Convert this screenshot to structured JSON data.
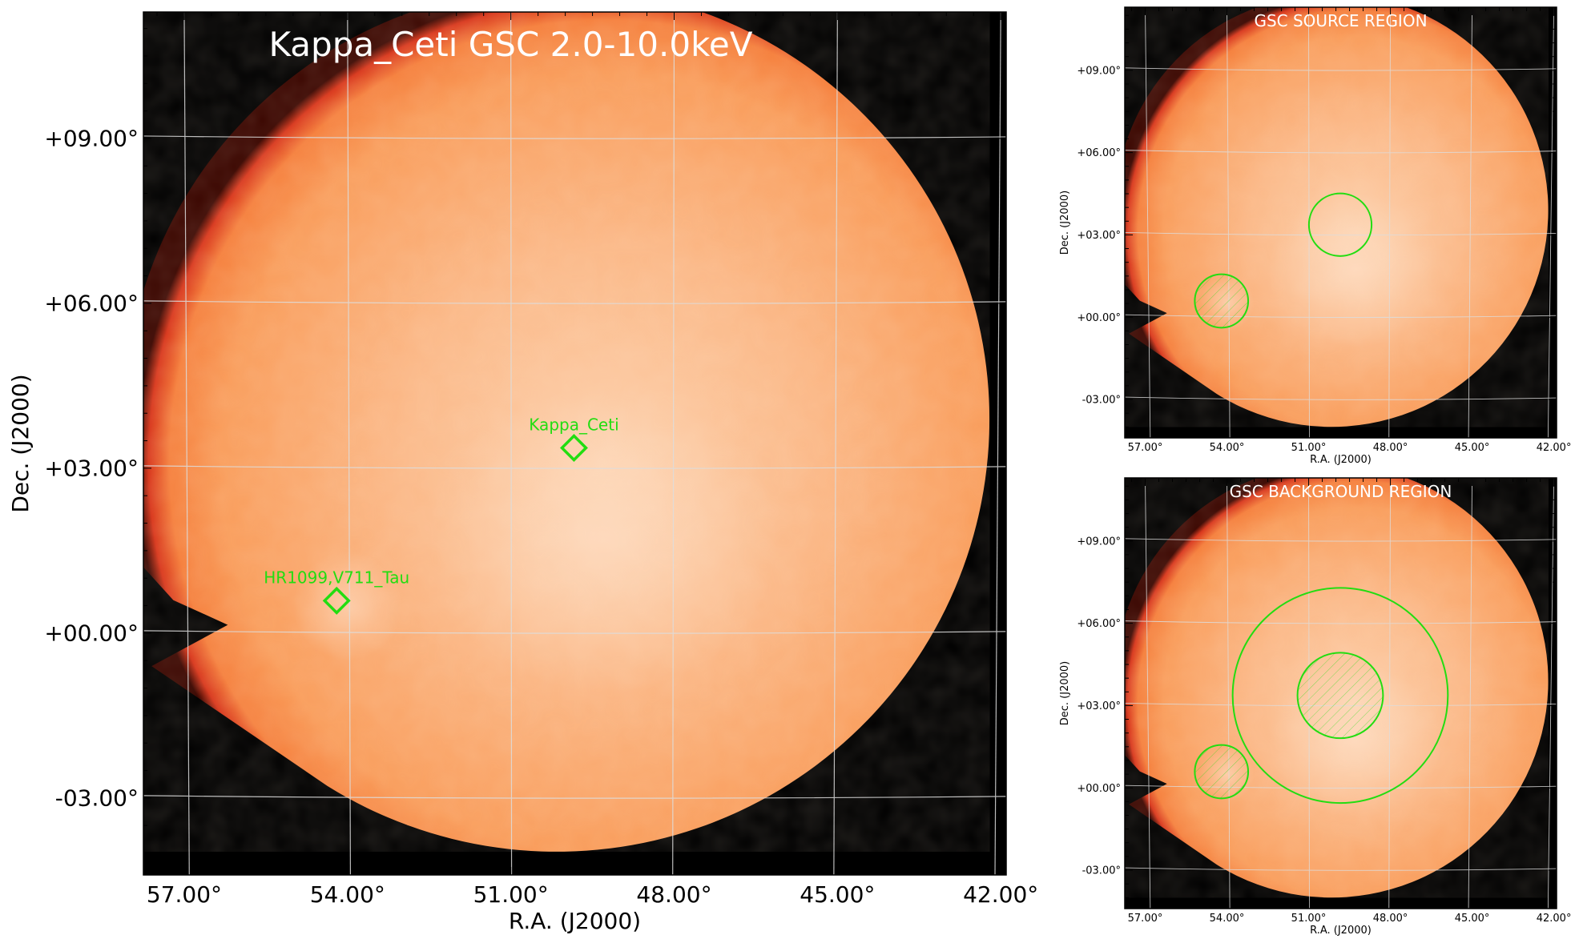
{
  "colors": {
    "background_sky": "#000000",
    "image_core": "#fcc59a",
    "image_mid": "#f99a52",
    "image_edge": "#e0301a",
    "region": "#22dd11",
    "grid": "#dddddd"
  },
  "chart_data": [
    {
      "type": "heatmap",
      "title": "Kappa_Ceti GSC 2.0-10.0keV",
      "xlabel": "R.A. (J2000)",
      "ylabel": "Dec. (J2000)",
      "xlim": [
        57.75,
        41.9
      ],
      "ylim": [
        -4.4,
        11.3
      ],
      "x_ticks": [
        57.0,
        54.0,
        51.0,
        48.0,
        45.0,
        42.0
      ],
      "x_tick_labels": [
        "57.00°",
        "54.00°",
        "51.00°",
        "48.00°",
        "45.00°",
        "42.00°"
      ],
      "y_ticks": [
        9.0,
        6.0,
        3.0,
        0.0,
        -3.0
      ],
      "y_tick_labels": [
        "+09.00°",
        "+06.00°",
        "+03.00°",
        "+00.00°",
        "-03.00°"
      ],
      "grid": true,
      "sources": [
        {
          "name": "Kappa_Ceti",
          "ra": 49.84,
          "dec": 3.37,
          "marker": "diamond"
        },
        {
          "name": "HR1099,V711_Tau",
          "ra": 54.2,
          "dec": 0.59,
          "marker": "diamond"
        }
      ]
    },
    {
      "type": "heatmap",
      "title": "GSC SOURCE REGION",
      "xlabel": "R.A. (J2000)",
      "ylabel": "Dec. (J2000)",
      "xlim": [
        57.75,
        41.9
      ],
      "ylim": [
        -4.4,
        11.3
      ],
      "x_ticks": [
        57.0,
        54.0,
        51.0,
        48.0,
        45.0,
        42.0
      ],
      "x_tick_labels": [
        "57.00°",
        "54.00°",
        "51.00°",
        "48.00°",
        "45.00°",
        "42.00°"
      ],
      "y_ticks": [
        9.0,
        6.0,
        3.0,
        0.0,
        -3.0
      ],
      "y_tick_labels": [
        "+09.00°",
        "+06.00°",
        "+03.00°",
        "+00.00°",
        "-03.00°"
      ],
      "grid": true,
      "regions": [
        {
          "kind": "circle",
          "ra": 49.84,
          "dec": 3.37,
          "radius_deg": 1.15,
          "hatched": false
        },
        {
          "kind": "circle",
          "ra": 54.2,
          "dec": 0.59,
          "radius_deg": 0.98,
          "hatched": true
        }
      ]
    },
    {
      "type": "heatmap",
      "title": "GSC BACKGROUND REGION",
      "xlabel": "R.A. (J2000)",
      "ylabel": "Dec. (J2000)",
      "xlim": [
        57.75,
        41.9
      ],
      "ylim": [
        -4.4,
        11.3
      ],
      "x_ticks": [
        57.0,
        54.0,
        51.0,
        48.0,
        45.0,
        42.0
      ],
      "x_tick_labels": [
        "57.00°",
        "54.00°",
        "51.00°",
        "48.00°",
        "45.00°",
        "42.00°"
      ],
      "y_ticks": [
        9.0,
        6.0,
        3.0,
        0.0,
        -3.0
      ],
      "y_tick_labels": [
        "+09.00°",
        "+06.00°",
        "+03.00°",
        "+00.00°",
        "-03.00°"
      ],
      "grid": true,
      "regions": [
        {
          "kind": "circle",
          "ra": 49.84,
          "dec": 3.37,
          "radius_deg": 3.95,
          "hatched": false
        },
        {
          "kind": "circle",
          "ra": 49.84,
          "dec": 3.37,
          "radius_deg": 1.57,
          "hatched": true
        },
        {
          "kind": "circle",
          "ra": 54.2,
          "dec": 0.59,
          "radius_deg": 0.98,
          "hatched": true
        }
      ]
    }
  ]
}
